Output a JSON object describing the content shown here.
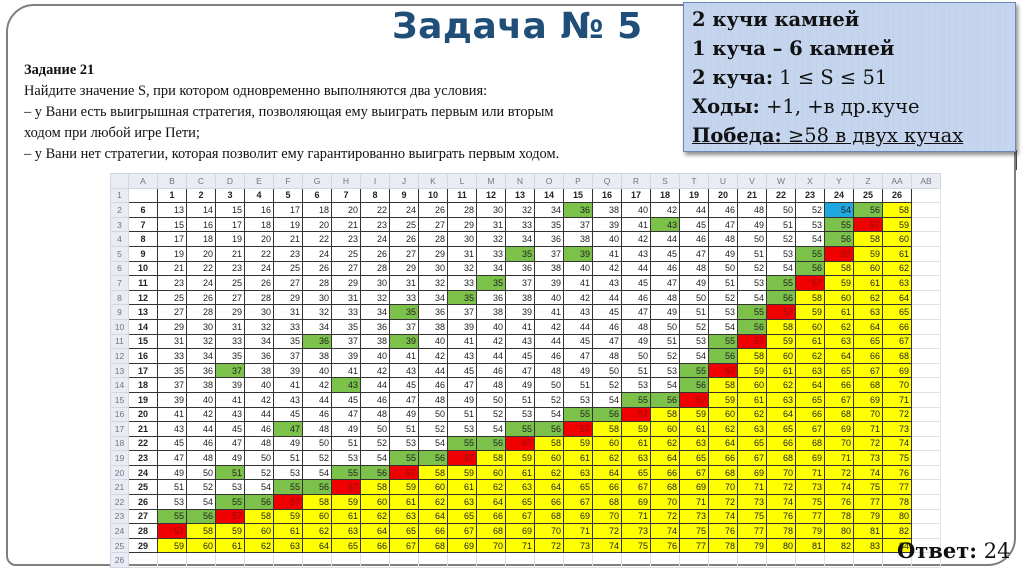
{
  "slide": {
    "title": "Задача № 5",
    "task": {
      "heading": "Задание 21",
      "lines": [
        "Найдите значение S, при котором одновременно выполняются два условия:",
        "– у Вани есть выигрышная стратегия, позволяющая ему выиграть первым или вторым",
        "ходом при любой игре Пети;",
        "– у Вани нет стратегии, которая позволит ему гарантированно выиграть первым ходом."
      ]
    },
    "info_box": {
      "line1": "2 кучи камней",
      "line2": "1 куча – 6 камней",
      "line3_label": "2 куча:",
      "line3_value": " 1 ≤ S ≤ 51",
      "line4_label": "Ходы:",
      "line4_value": " +1, +в др.куче",
      "line5_label": "Победа:",
      "line5_value": " ≥58 в двух кучах"
    },
    "answer": {
      "label": "Ответ:",
      "value": " 24"
    }
  },
  "spreadsheet": {
    "column_letters": [
      "A",
      "B",
      "C",
      "D",
      "E",
      "F",
      "G",
      "H",
      "I",
      "J",
      "K",
      "L",
      "M",
      "N",
      "O",
      "P",
      "Q",
      "R",
      "S",
      "T",
      "U",
      "V",
      "W",
      "X",
      "Y",
      "Z",
      "AA",
      "AB"
    ],
    "row_numbers": [
      "1",
      "2",
      "3",
      "4",
      "5",
      "6",
      "7",
      "8",
      "9",
      "10",
      "11",
      "12",
      "13",
      "14",
      "15",
      "16",
      "17",
      "18",
      "19",
      "20",
      "21",
      "22",
      "23",
      "24",
      "25",
      "26"
    ],
    "header_values": [
      "1",
      "2",
      "3",
      "4",
      "5",
      "6",
      "7",
      "8",
      "9",
      "10",
      "11",
      "12",
      "13",
      "14",
      "15",
      "16",
      "17",
      "18",
      "19",
      "20",
      "21",
      "22",
      "23",
      "24",
      "25",
      "26"
    ],
    "colors": {
      "green": "#7cc14a",
      "red": "#f00000",
      "yellow": "#ffff00",
      "blue": "#1fa8e0",
      "white": "#ffffff"
    },
    "rows": [
      {
        "a": "6",
        "values": [
          13,
          14,
          15,
          16,
          17,
          18,
          20,
          22,
          24,
          26,
          28,
          30,
          32,
          34,
          36,
          38,
          40,
          42,
          44,
          46,
          48,
          50,
          52,
          54,
          56,
          58
        ],
        "fill": "wwwwwwwwwwwwwwgwwwwwwwwbgy"
      },
      {
        "a": "7",
        "values": [
          15,
          16,
          17,
          18,
          19,
          20,
          21,
          23,
          25,
          27,
          29,
          31,
          33,
          35,
          37,
          39,
          41,
          43,
          45,
          47,
          49,
          51,
          53,
          55,
          57,
          59
        ],
        "fill": "wwwwwwwwwwwwwwwwwgwwwwwgry"
      },
      {
        "a": "8",
        "values": [
          17,
          18,
          19,
          20,
          21,
          22,
          23,
          24,
          26,
          28,
          30,
          32,
          34,
          36,
          38,
          40,
          42,
          44,
          46,
          48,
          50,
          52,
          54,
          56,
          58,
          60
        ],
        "fill": "wwwwwwwwwwwwwwwwwwwwwwwgyy"
      },
      {
        "a": "9",
        "values": [
          19,
          20,
          21,
          22,
          23,
          24,
          25,
          26,
          27,
          29,
          31,
          33,
          35,
          37,
          39,
          41,
          43,
          45,
          47,
          49,
          51,
          53,
          55,
          57,
          59,
          61
        ],
        "fill": "wwwwwwwwwwwwgwgwwwwwwwgryy"
      },
      {
        "a": "10",
        "values": [
          21,
          22,
          23,
          24,
          25,
          26,
          27,
          28,
          29,
          30,
          32,
          34,
          36,
          38,
          40,
          42,
          44,
          46,
          48,
          50,
          52,
          54,
          56,
          58,
          60,
          62
        ],
        "fill": "wwwwwwwwwwwwwwwwwwwwwwgyyy"
      },
      {
        "a": "11",
        "values": [
          23,
          24,
          25,
          26,
          27,
          28,
          29,
          30,
          31,
          32,
          33,
          35,
          37,
          39,
          41,
          43,
          45,
          47,
          49,
          51,
          53,
          55,
          57,
          59,
          61,
          63
        ],
        "fill": "wwwwwwwwwwwgwwwwwwwwwgryyy"
      },
      {
        "a": "12",
        "values": [
          25,
          26,
          27,
          28,
          29,
          30,
          31,
          32,
          33,
          34,
          35,
          36,
          38,
          40,
          42,
          44,
          46,
          48,
          50,
          52,
          54,
          56,
          58,
          60,
          62,
          64
        ],
        "fill": "wwwwwwwwwwgwwwwwwwwwwgyyyy"
      },
      {
        "a": "13",
        "values": [
          27,
          28,
          29,
          30,
          31,
          32,
          33,
          34,
          35,
          36,
          37,
          38,
          39,
          41,
          43,
          45,
          47,
          49,
          51,
          53,
          55,
          57,
          59,
          61,
          63,
          65
        ],
        "fill": "wwwwwwwwgwwwwwwwwwwwgryyyy"
      },
      {
        "a": "14",
        "values": [
          29,
          30,
          31,
          32,
          33,
          34,
          35,
          36,
          37,
          38,
          39,
          40,
          41,
          42,
          44,
          46,
          48,
          50,
          52,
          54,
          56,
          58,
          60,
          62,
          64,
          66
        ],
        "fill": "wwwwwwwwwwwwwwwwwwwwgyyyyy"
      },
      {
        "a": "15",
        "values": [
          31,
          32,
          33,
          34,
          35,
          36,
          37,
          38,
          39,
          40,
          41,
          42,
          43,
          44,
          45,
          47,
          49,
          51,
          53,
          55,
          57,
          59,
          61,
          63,
          65,
          67
        ],
        "fill": "wwwwwgwwgwwwwwwwwwwgryyyyy"
      },
      {
        "a": "16",
        "values": [
          33,
          34,
          35,
          36,
          37,
          38,
          39,
          40,
          41,
          42,
          43,
          44,
          45,
          46,
          47,
          48,
          50,
          52,
          54,
          56,
          58,
          60,
          62,
          64,
          66,
          68
        ],
        "fill": "wwwwwwwwwwwwwwwwwwwgyyyyyy"
      },
      {
        "a": "17",
        "values": [
          35,
          36,
          37,
          38,
          39,
          40,
          41,
          42,
          43,
          44,
          45,
          46,
          47,
          48,
          49,
          50,
          51,
          53,
          55,
          57,
          59,
          61,
          63,
          65,
          67,
          69
        ],
        "fill": "wwgwwwwwwwwwwwwwwwgryyyyyy"
      },
      {
        "a": "18",
        "values": [
          37,
          38,
          39,
          40,
          41,
          42,
          43,
          44,
          45,
          46,
          47,
          48,
          49,
          50,
          51,
          52,
          53,
          54,
          56,
          58,
          60,
          62,
          64,
          66,
          68,
          70
        ],
        "fill": "wwwwwwgwwwwwwwwwwwgyyyyyyy"
      },
      {
        "a": "19",
        "values": [
          39,
          40,
          41,
          42,
          43,
          44,
          45,
          46,
          47,
          48,
          49,
          50,
          51,
          52,
          53,
          54,
          55,
          56,
          57,
          59,
          61,
          63,
          65,
          67,
          69,
          71
        ],
        "fill": "wwwwwwwwwwwwwwwwggryyyyyyy"
      },
      {
        "a": "20",
        "values": [
          41,
          42,
          43,
          44,
          45,
          46,
          47,
          48,
          49,
          50,
          51,
          52,
          53,
          54,
          55,
          56,
          57,
          58,
          59,
          60,
          62,
          64,
          66,
          68,
          70,
          72
        ],
        "fill": "wwwwwwwwwwwwwwggryyyyyyyyy"
      },
      {
        "a": "21",
        "values": [
          43,
          44,
          45,
          46,
          47,
          48,
          49,
          50,
          51,
          52,
          53,
          54,
          55,
          56,
          57,
          58,
          59,
          60,
          61,
          62,
          63,
          65,
          67,
          69,
          71,
          73
        ],
        "fill": "wwwwgwwwwwwwggryyyyyyyyyyy"
      },
      {
        "a": "22",
        "values": [
          45,
          46,
          47,
          48,
          49,
          50,
          51,
          52,
          53,
          54,
          55,
          56,
          57,
          58,
          59,
          60,
          61,
          62,
          63,
          64,
          65,
          66,
          68,
          70,
          72,
          74
        ],
        "fill": "wwwwwwwwwwggryyyyyyyyyyyyy"
      },
      {
        "a": "23",
        "values": [
          47,
          48,
          49,
          50,
          51,
          52,
          53,
          54,
          55,
          56,
          57,
          58,
          59,
          60,
          61,
          62,
          63,
          64,
          65,
          66,
          67,
          68,
          69,
          71,
          73,
          75
        ],
        "fill": "wwwwwwwwggryyyyyyyyyyyyyyy"
      },
      {
        "a": "24",
        "values": [
          49,
          50,
          51,
          52,
          53,
          54,
          55,
          56,
          57,
          58,
          59,
          60,
          61,
          62,
          63,
          64,
          65,
          66,
          67,
          68,
          69,
          70,
          71,
          72,
          74,
          76
        ],
        "fill": "wwgwwwggryyyyyyyyyyyyyyyyy"
      },
      {
        "a": "25",
        "values": [
          51,
          52,
          53,
          54,
          55,
          56,
          57,
          58,
          59,
          60,
          61,
          62,
          63,
          64,
          65,
          66,
          67,
          68,
          69,
          70,
          71,
          72,
          73,
          74,
          75,
          77
        ],
        "fill": "wwwwggryyyyyyyyyyyyyyyyyyy"
      },
      {
        "a": "26",
        "values": [
          53,
          54,
          55,
          56,
          57,
          58,
          59,
          60,
          61,
          62,
          63,
          64,
          65,
          66,
          67,
          68,
          69,
          70,
          71,
          72,
          73,
          74,
          75,
          76,
          77,
          78
        ],
        "fill": "wwggryyyyyyyyyyyyyyyyyyyyy"
      },
      {
        "a": "27",
        "values": [
          55,
          56,
          57,
          58,
          59,
          60,
          61,
          62,
          63,
          64,
          65,
          66,
          67,
          68,
          69,
          70,
          71,
          72,
          73,
          74,
          75,
          76,
          77,
          78,
          79,
          80
        ],
        "fill": "ggryyyyyyyyyyyyyyyyyyyyyyy"
      },
      {
        "a": "28",
        "values": [
          57,
          58,
          59,
          60,
          61,
          62,
          63,
          64,
          65,
          66,
          67,
          68,
          69,
          70,
          71,
          72,
          73,
          74,
          75,
          76,
          77,
          78,
          79,
          80,
          81,
          82
        ],
        "fill": "ryyyyyyyyyyyyyyyyyyyyyyyyy"
      },
      {
        "a": "29",
        "values": [
          59,
          60,
          61,
          62,
          63,
          64,
          65,
          66,
          67,
          68,
          69,
          70,
          71,
          72,
          73,
          74,
          75,
          76,
          77,
          78,
          79,
          80,
          81,
          82,
          83,
          84
        ],
        "fill": "yyyyyyyyyyyyyyyyyyyyyyyyyy"
      }
    ]
  }
}
